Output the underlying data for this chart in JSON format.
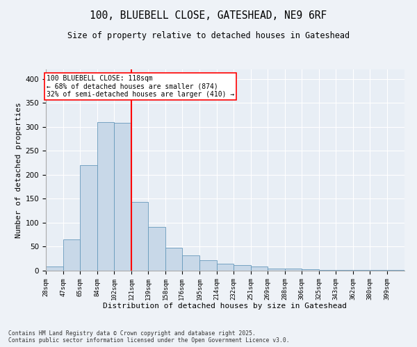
{
  "title_line1": "100, BLUEBELL CLOSE, GATESHEAD, NE9 6RF",
  "title_line2": "Size of property relative to detached houses in Gateshead",
  "xlabel": "Distribution of detached houses by size in Gateshead",
  "ylabel": "Number of detached properties",
  "bar_color": "#c8d8e8",
  "bar_edge_color": "#6699bb",
  "vline_x": 121,
  "vline_color": "red",
  "annotation_title": "100 BLUEBELL CLOSE: 118sqm",
  "annotation_line2": "← 68% of detached houses are smaller (874)",
  "annotation_line3": "32% of semi-detached houses are larger (410) →",
  "categories": [
    "28sqm",
    "47sqm",
    "65sqm",
    "84sqm",
    "102sqm",
    "121sqm",
    "139sqm",
    "158sqm",
    "176sqm",
    "195sqm",
    "214sqm",
    "232sqm",
    "251sqm",
    "269sqm",
    "288sqm",
    "306sqm",
    "325sqm",
    "343sqm",
    "362sqm",
    "380sqm",
    "399sqm"
  ],
  "bin_values": [
    9,
    65,
    220,
    310,
    308,
    143,
    91,
    48,
    32,
    22,
    14,
    11,
    9,
    5,
    5,
    3,
    2,
    1,
    1,
    1,
    2
  ],
  "bin_edges": [
    28,
    47,
    65,
    84,
    102,
    121,
    139,
    158,
    176,
    195,
    214,
    232,
    251,
    269,
    288,
    306,
    325,
    343,
    362,
    380,
    399,
    418
  ],
  "ylim": [
    0,
    420
  ],
  "yticks": [
    0,
    50,
    100,
    150,
    200,
    250,
    300,
    350,
    400
  ],
  "footer_line1": "Contains HM Land Registry data © Crown copyright and database right 2025.",
  "footer_line2": "Contains public sector information licensed under the Open Government Licence v3.0.",
  "background_color": "#eef2f7",
  "plot_bg_color": "#e8eef5"
}
